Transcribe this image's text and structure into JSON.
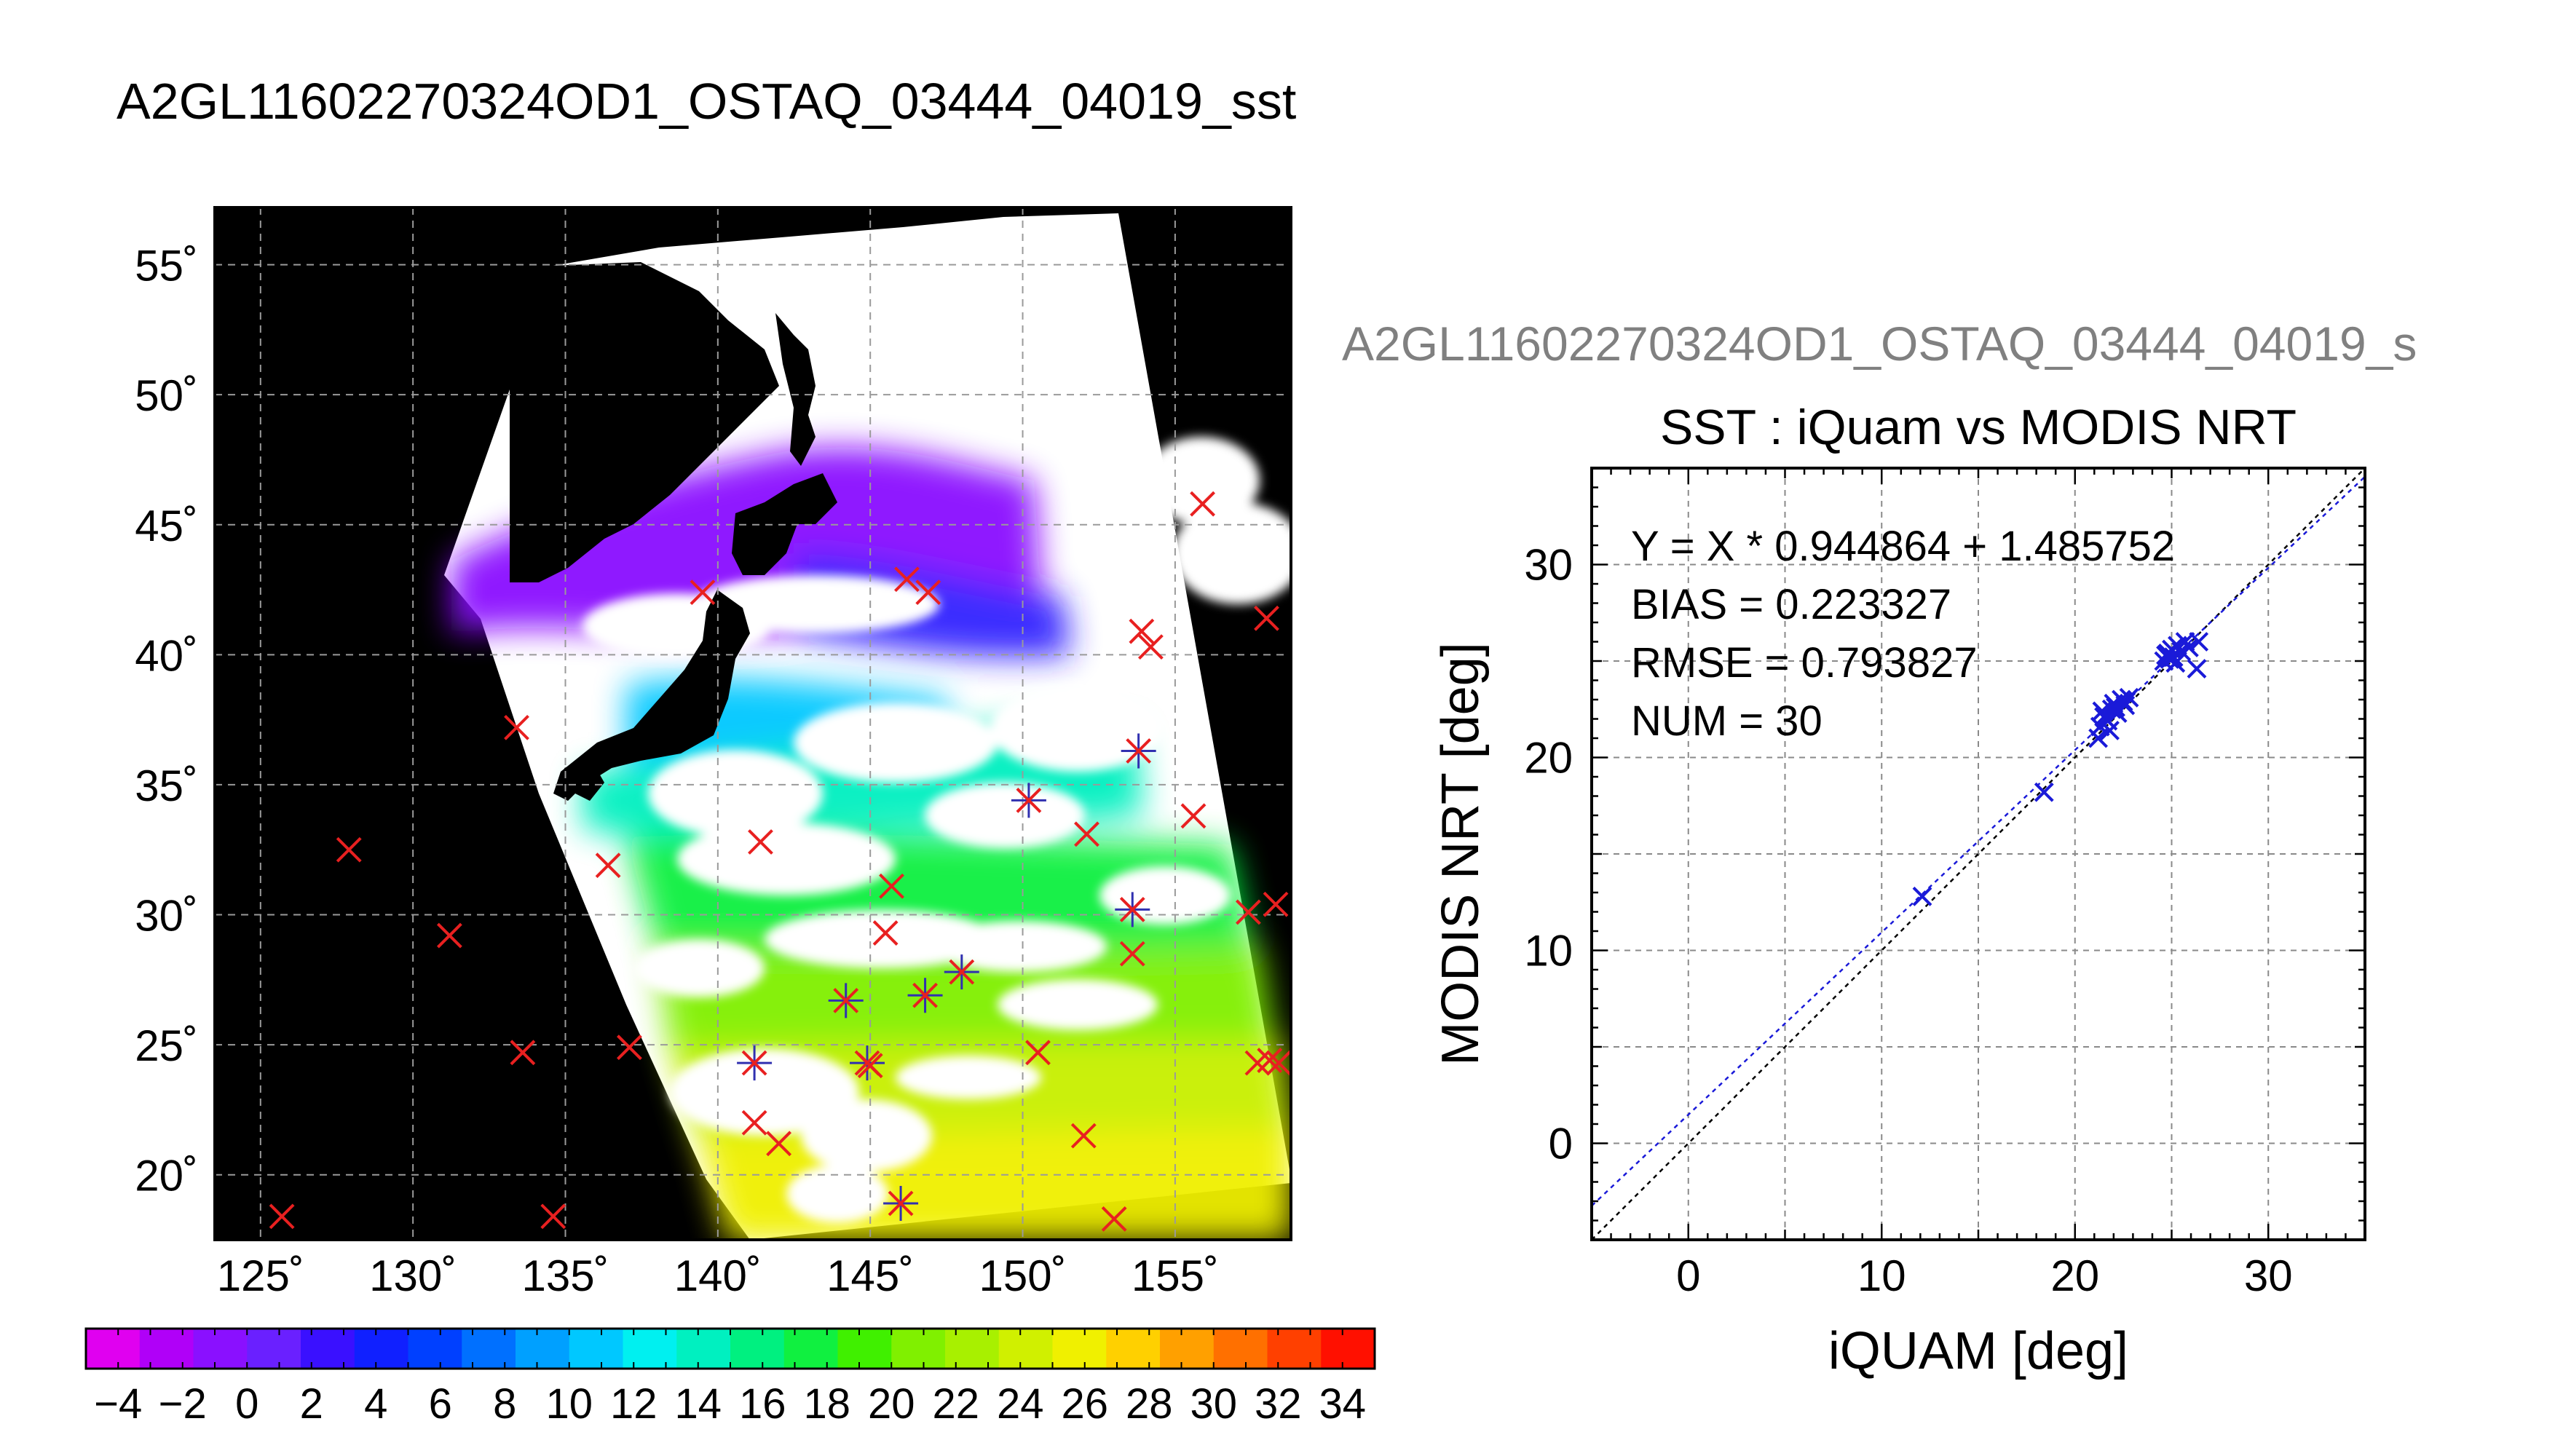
{
  "page": {
    "title": "A2GL11602270324OD1_OSTAQ_03444_04019_sst",
    "right_panel_title": "A2GL11602270324OD1_OSTAQ_03444_04019_s"
  },
  "map": {
    "type": "map",
    "lat_ticks": [
      20,
      25,
      30,
      35,
      40,
      45,
      50,
      55
    ],
    "lat_labels": [
      "20˚",
      "25˚",
      "30˚",
      "35˚",
      "40˚",
      "45˚",
      "50˚",
      "55˚"
    ],
    "lon_ticks": [
      125,
      130,
      135,
      140,
      145,
      150,
      155
    ],
    "lon_labels": [
      "125˚",
      "130˚",
      "135˚",
      "140˚",
      "145˚",
      "150˚",
      "155˚"
    ],
    "lon_range": [
      123.5,
      158.8
    ],
    "lat_range": [
      17.5,
      57.2
    ],
    "background_color": "#000000",
    "cloud_color": "#ffffff",
    "grid": true
  },
  "colorbar": {
    "labels": [
      "−4",
      "−2",
      "0",
      "2",
      "4",
      "6",
      "8",
      "10",
      "12",
      "14",
      "16",
      "18",
      "20",
      "22",
      "24",
      "26",
      "28",
      "30",
      "32",
      "34"
    ],
    "range": [
      -5,
      35
    ],
    "colors": [
      "#e000f0",
      "#b000f8",
      "#8a10ff",
      "#6a20ff",
      "#3a10ff",
      "#1020ff",
      "#0040ff",
      "#0070ff",
      "#00a0ff",
      "#00c8ff",
      "#00f0f0",
      "#00f0c0",
      "#00f080",
      "#10f040",
      "#40f000",
      "#80f000",
      "#a8f000",
      "#d0f000",
      "#f0f000",
      "#ffd000",
      "#ffa000",
      "#ff7000",
      "#ff4000",
      "#ff1000"
    ]
  },
  "chart_data": {
    "type": "scatter",
    "title": "SST : iQuam vs MODIS NRT",
    "xlabel": "iQUAM [deg]",
    "ylabel": "MODIS NRT [deg]",
    "xlim": [
      -5,
      35
    ],
    "ylim": [
      -5,
      35
    ],
    "xticks": [
      0,
      10,
      20,
      30
    ],
    "yticks": [
      0,
      10,
      20,
      30
    ],
    "grid": true,
    "annotations": [
      "Y = X * 0.944864 + 1.485752",
      "BIAS = 0.223327",
      "RMSE = 0.793827",
      "NUM = 30"
    ],
    "fit": {
      "slope": 0.944864,
      "intercept": 1.485752
    },
    "points": [
      {
        "x": 12.1,
        "y": 12.8
      },
      {
        "x": 18.4,
        "y": 18.2
      },
      {
        "x": 21.2,
        "y": 21.0
      },
      {
        "x": 21.3,
        "y": 21.6
      },
      {
        "x": 21.5,
        "y": 22.1
      },
      {
        "x": 21.4,
        "y": 22.4
      },
      {
        "x": 21.7,
        "y": 21.9
      },
      {
        "x": 21.9,
        "y": 22.5
      },
      {
        "x": 22.0,
        "y": 22.8
      },
      {
        "x": 22.2,
        "y": 22.3
      },
      {
        "x": 22.4,
        "y": 23.0
      },
      {
        "x": 22.6,
        "y": 22.7
      },
      {
        "x": 22.8,
        "y": 23.1
      },
      {
        "x": 22.5,
        "y": 22.9
      },
      {
        "x": 21.8,
        "y": 21.4
      },
      {
        "x": 24.6,
        "y": 25.0
      },
      {
        "x": 24.8,
        "y": 25.4
      },
      {
        "x": 24.9,
        "y": 25.1
      },
      {
        "x": 25.0,
        "y": 25.6
      },
      {
        "x": 25.1,
        "y": 25.2
      },
      {
        "x": 25.3,
        "y": 25.8
      },
      {
        "x": 25.5,
        "y": 25.5
      },
      {
        "x": 25.7,
        "y": 26.0
      },
      {
        "x": 25.9,
        "y": 25.7
      },
      {
        "x": 26.3,
        "y": 24.6
      },
      {
        "x": 26.4,
        "y": 26.0
      },
      {
        "x": 24.7,
        "y": 25.3
      },
      {
        "x": 25.2,
        "y": 24.9
      },
      {
        "x": 21.6,
        "y": 22.0
      },
      {
        "x": 22.1,
        "y": 22.6
      }
    ],
    "point_color": "#1a1ad8"
  },
  "map_markers": {
    "red_color": "#e82020",
    "blue_color": "#3030b0",
    "red": [
      [
        125.7,
        18.4
      ],
      [
        127.9,
        32.5
      ],
      [
        131.2,
        29.2
      ],
      [
        133.4,
        37.2
      ],
      [
        133.6,
        24.7
      ],
      [
        134.6,
        18.4
      ],
      [
        136.4,
        31.9
      ],
      [
        137.1,
        24.9
      ],
      [
        139.5,
        42.4
      ],
      [
        141.2,
        24.3
      ],
      [
        141.2,
        22.0
      ],
      [
        141.4,
        32.8
      ],
      [
        142.0,
        21.2
      ],
      [
        144.2,
        26.7
      ],
      [
        144.9,
        24.3
      ],
      [
        145.0,
        24.2
      ],
      [
        145.5,
        29.3
      ],
      [
        145.7,
        31.1
      ],
      [
        146.2,
        42.9
      ],
      [
        146.9,
        42.4
      ],
      [
        146.8,
        26.9
      ],
      [
        148.0,
        27.8
      ],
      [
        146.0,
        18.9
      ],
      [
        150.2,
        34.4
      ],
      [
        150.5,
        24.7
      ],
      [
        152.0,
        21.5
      ],
      [
        152.1,
        33.1
      ],
      [
        153.0,
        18.3
      ],
      [
        153.6,
        28.5
      ],
      [
        153.6,
        30.2
      ],
      [
        153.8,
        36.3
      ],
      [
        153.9,
        40.9
      ],
      [
        154.2,
        40.3
      ],
      [
        155.6,
        33.8
      ],
      [
        155.9,
        45.8
      ],
      [
        157.4,
        30.1
      ],
      [
        157.7,
        24.3
      ],
      [
        158.1,
        24.4
      ],
      [
        158.3,
        30.4
      ],
      [
        158.4,
        24.3
      ],
      [
        158.0,
        41.4
      ]
    ],
    "blue": [
      [
        141.2,
        24.3
      ],
      [
        144.2,
        26.7
      ],
      [
        144.9,
        24.3
      ],
      [
        146.8,
        26.9
      ],
      [
        148.0,
        27.8
      ],
      [
        146.0,
        18.9
      ],
      [
        153.6,
        30.2
      ],
      [
        153.8,
        36.3
      ],
      [
        150.2,
        34.4
      ]
    ]
  }
}
